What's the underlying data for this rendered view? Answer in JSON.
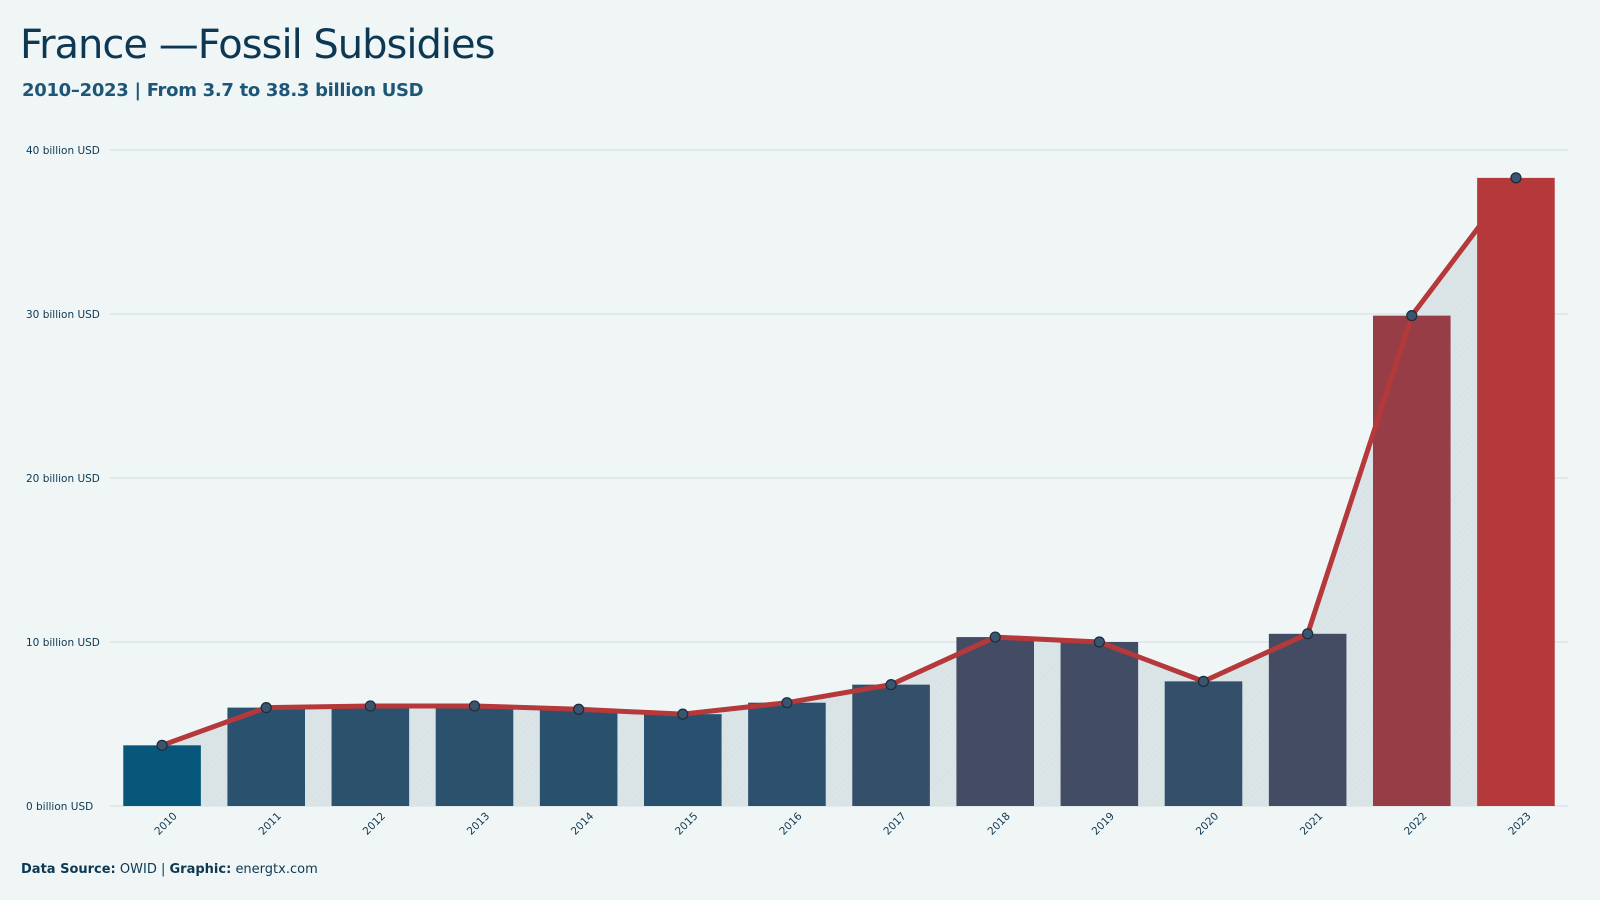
{
  "header": {
    "title": "France —Fossil Subsidies",
    "subtitle": "2010–2023 | From 3.7 to 38.3 billion USD"
  },
  "footer": {
    "source_label": "Data Source:",
    "source_value": "OWID",
    "separator": "|",
    "graphic_label": "Graphic:",
    "graphic_value": "energtx.com"
  },
  "colors": {
    "background": "#f0f6f6",
    "line": "#b5383b",
    "area": "#dbe5e7",
    "grid": "#d3dcdf",
    "marker_fill": "#3a5570",
    "marker_stroke": "#1d2b38",
    "text": "#0d3853",
    "bar_low": "#07577a",
    "bar_high": "#b5383b"
  },
  "chart_data": {
    "type": "bar",
    "categories": [
      "2010",
      "2011",
      "2012",
      "2013",
      "2014",
      "2015",
      "2016",
      "2017",
      "2018",
      "2019",
      "2020",
      "2021",
      "2022",
      "2023"
    ],
    "values": [
      3.7,
      6.0,
      6.1,
      6.1,
      5.9,
      5.6,
      6.3,
      7.4,
      10.3,
      10.0,
      7.6,
      10.5,
      29.9,
      38.3
    ],
    "overlay": "line-with-markers-and-area",
    "ylim": [
      0,
      40
    ],
    "yticks": [
      0,
      10,
      20,
      30,
      40
    ],
    "ytick_labels": [
      "0 billion USD",
      "10 billion USD",
      "20 billion USD",
      "30 billion USD",
      "40 billion USD"
    ],
    "grid": "horizontal",
    "legend": "none"
  }
}
